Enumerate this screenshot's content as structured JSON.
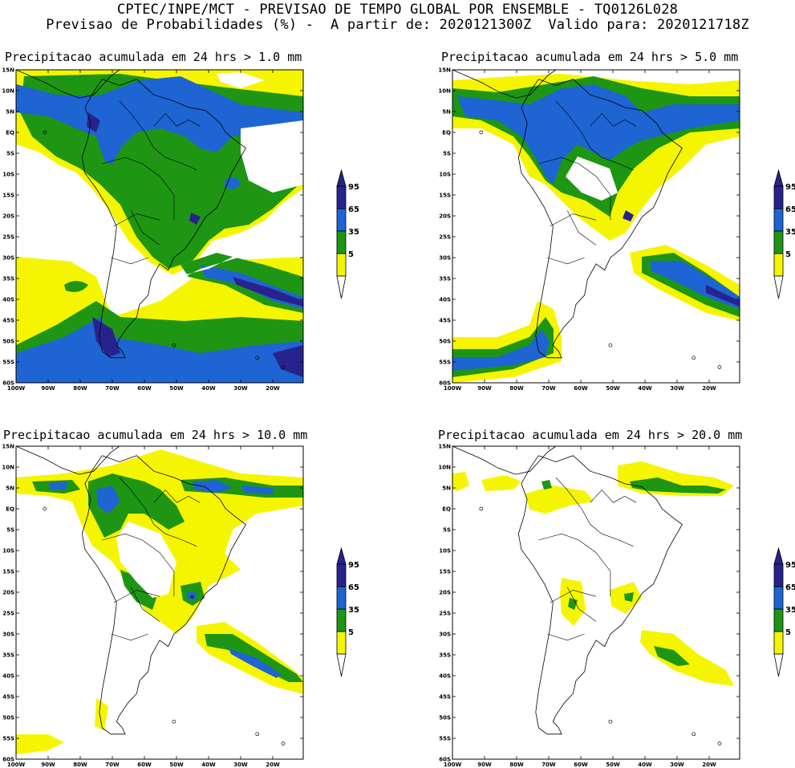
{
  "header": {
    "line1": "CPTEC/INPE/MCT - PREVISAO DE TEMPO GLOBAL POR ENSEMBLE - TQ0126L028",
    "line2": "Previsao de Probabilidades (%) -  A partir de: 2020121300Z  Valido para: 2020121718Z"
  },
  "axes": {
    "lat_labels": [
      "15N",
      "10N",
      "5N",
      "EQ",
      "5S",
      "10S",
      "15S",
      "20S",
      "25S",
      "30S",
      "35S",
      "40S",
      "45S",
      "50S",
      "55S",
      "60S"
    ],
    "lon_labels": [
      "100W",
      "90W",
      "80W",
      "70W",
      "60W",
      "50W",
      "40W",
      "30W",
      "20W"
    ]
  },
  "colorbar": {
    "levels": [
      "5",
      "35",
      "65",
      "95"
    ],
    "colors": {
      "c5": "#f5f500",
      "c35": "#1e9614",
      "c65": "#1e64d2",
      "c95": "#28238c"
    }
  },
  "panels": [
    {
      "id": "p1",
      "title": "Precipitacao acumulada em 24 hrs > 1.0 mm"
    },
    {
      "id": "p2",
      "title": "Precipitacao acumulada em 24 hrs > 5.0 mm"
    },
    {
      "id": "p3",
      "title": "Precipitacao acumulada em 24 hrs > 10.0 mm"
    },
    {
      "id": "p4",
      "title": "Precipitacao acumulada em 24 hrs > 20.0 mm"
    }
  ]
}
